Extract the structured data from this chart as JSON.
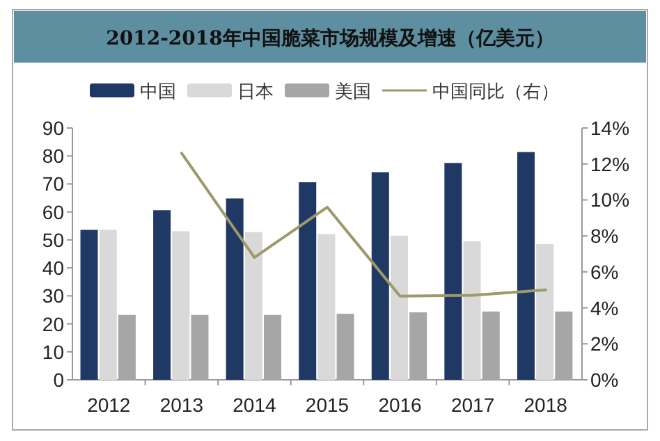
{
  "chart_data": {
    "type": "bar",
    "title": "2012-2018年中国脆菜市场规模及增速（亿美元）",
    "categories": [
      "2012",
      "2013",
      "2014",
      "2015",
      "2016",
      "2017",
      "2018"
    ],
    "series": [
      {
        "name": "中国",
        "color": "#1f3864",
        "values": [
          53.6,
          60.6,
          64.8,
          70.6,
          74.2,
          77.5,
          81.4
        ]
      },
      {
        "name": "日本",
        "color": "#d9d9d9",
        "values": [
          53.6,
          53.1,
          52.8,
          52.1,
          51.5,
          49.5,
          48.5
        ]
      },
      {
        "name": "美国",
        "color": "#a6a6a6",
        "values": [
          23.2,
          23.2,
          23.2,
          23.6,
          24.1,
          24.4,
          24.4
        ]
      },
      {
        "name": "中国同比（右）",
        "type": "line",
        "axis": "y2",
        "color": "#9c9a6a",
        "values": [
          null,
          12.6,
          6.8,
          9.6,
          4.65,
          4.7,
          5.0
        ]
      }
    ],
    "ylim": [
      0,
      90
    ],
    "yticks": [
      0,
      10,
      20,
      30,
      40,
      50,
      60,
      70,
      80,
      90
    ],
    "y2lim": [
      0,
      14
    ],
    "y2ticks": [
      {
        "value": 0,
        "label": "0%"
      },
      {
        "value": 2,
        "label": "2%"
      },
      {
        "value": 4,
        "label": "4%"
      },
      {
        "value": 6,
        "label": "6%"
      },
      {
        "value": 8,
        "label": "8%"
      },
      {
        "value": 10,
        "label": "10%"
      },
      {
        "value": 12,
        "label": "12%"
      },
      {
        "value": 14,
        "label": "14%"
      }
    ],
    "legend": "top",
    "grid": false
  }
}
